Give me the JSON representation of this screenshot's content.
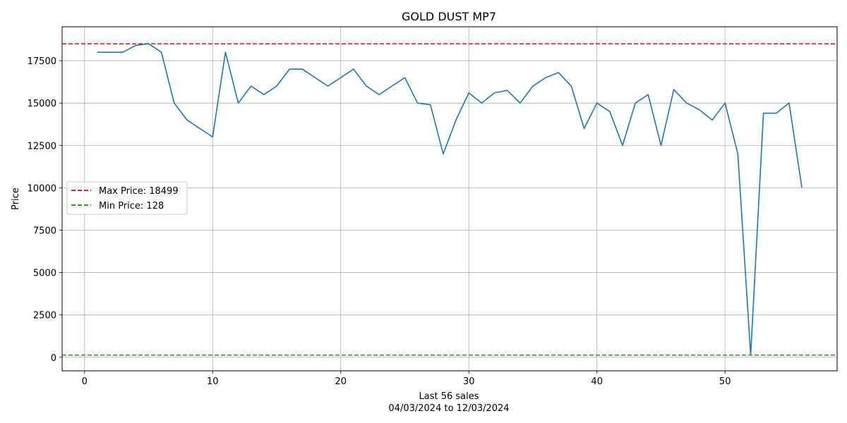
{
  "chart_data": {
    "type": "line",
    "title": "GOLD DUST MP7",
    "xlabel": "Last 56 sales",
    "xlabel_sub": "04/03/2024 to 12/03/2024",
    "ylabel": "Price",
    "xlim": [
      -1.75,
      58.75
    ],
    "ylim": [
      -800,
      19500
    ],
    "xticks": [
      0,
      10,
      20,
      30,
      40,
      50
    ],
    "yticks": [
      0,
      2500,
      5000,
      7500,
      10000,
      12500,
      15000,
      17500
    ],
    "grid": true,
    "legend_position": "center-left",
    "series": [
      {
        "color": "#1f77b4",
        "x": [
          1,
          2,
          3,
          4,
          5,
          6,
          7,
          8,
          9,
          10,
          11,
          12,
          13,
          14,
          15,
          16,
          17,
          18,
          19,
          20,
          21,
          22,
          23,
          24,
          25,
          26,
          27,
          28,
          29,
          30,
          31,
          32,
          33,
          34,
          35,
          36,
          37,
          38,
          39,
          40,
          41,
          42,
          43,
          44,
          45,
          46,
          47,
          48,
          49,
          50,
          51,
          52,
          53,
          54,
          55,
          56
        ],
        "y": [
          18000,
          18000,
          18000,
          18400,
          18499,
          18000,
          15000,
          14000,
          13500,
          13000,
          18000,
          15000,
          16000,
          15500,
          16000,
          17000,
          17000,
          16500,
          16000,
          16500,
          17000,
          16000,
          15500,
          16000,
          16500,
          15000,
          14900,
          12000,
          14000,
          15600,
          15000,
          15600,
          15750,
          15000,
          16000,
          16500,
          16800,
          16000,
          13500,
          15000,
          14500,
          12500,
          15000,
          15500,
          12500,
          15800,
          15000,
          14600,
          14000,
          15000,
          12000,
          128,
          14400,
          14400,
          15000,
          10000
        ]
      }
    ],
    "reference_lines": [
      {
        "label": "Max Price: 18499",
        "value": 18499,
        "color": "#d62728",
        "style": "dashed"
      },
      {
        "label": "Min Price: 128",
        "value": 128,
        "color": "#2ca02c",
        "style": "dashed"
      }
    ]
  }
}
